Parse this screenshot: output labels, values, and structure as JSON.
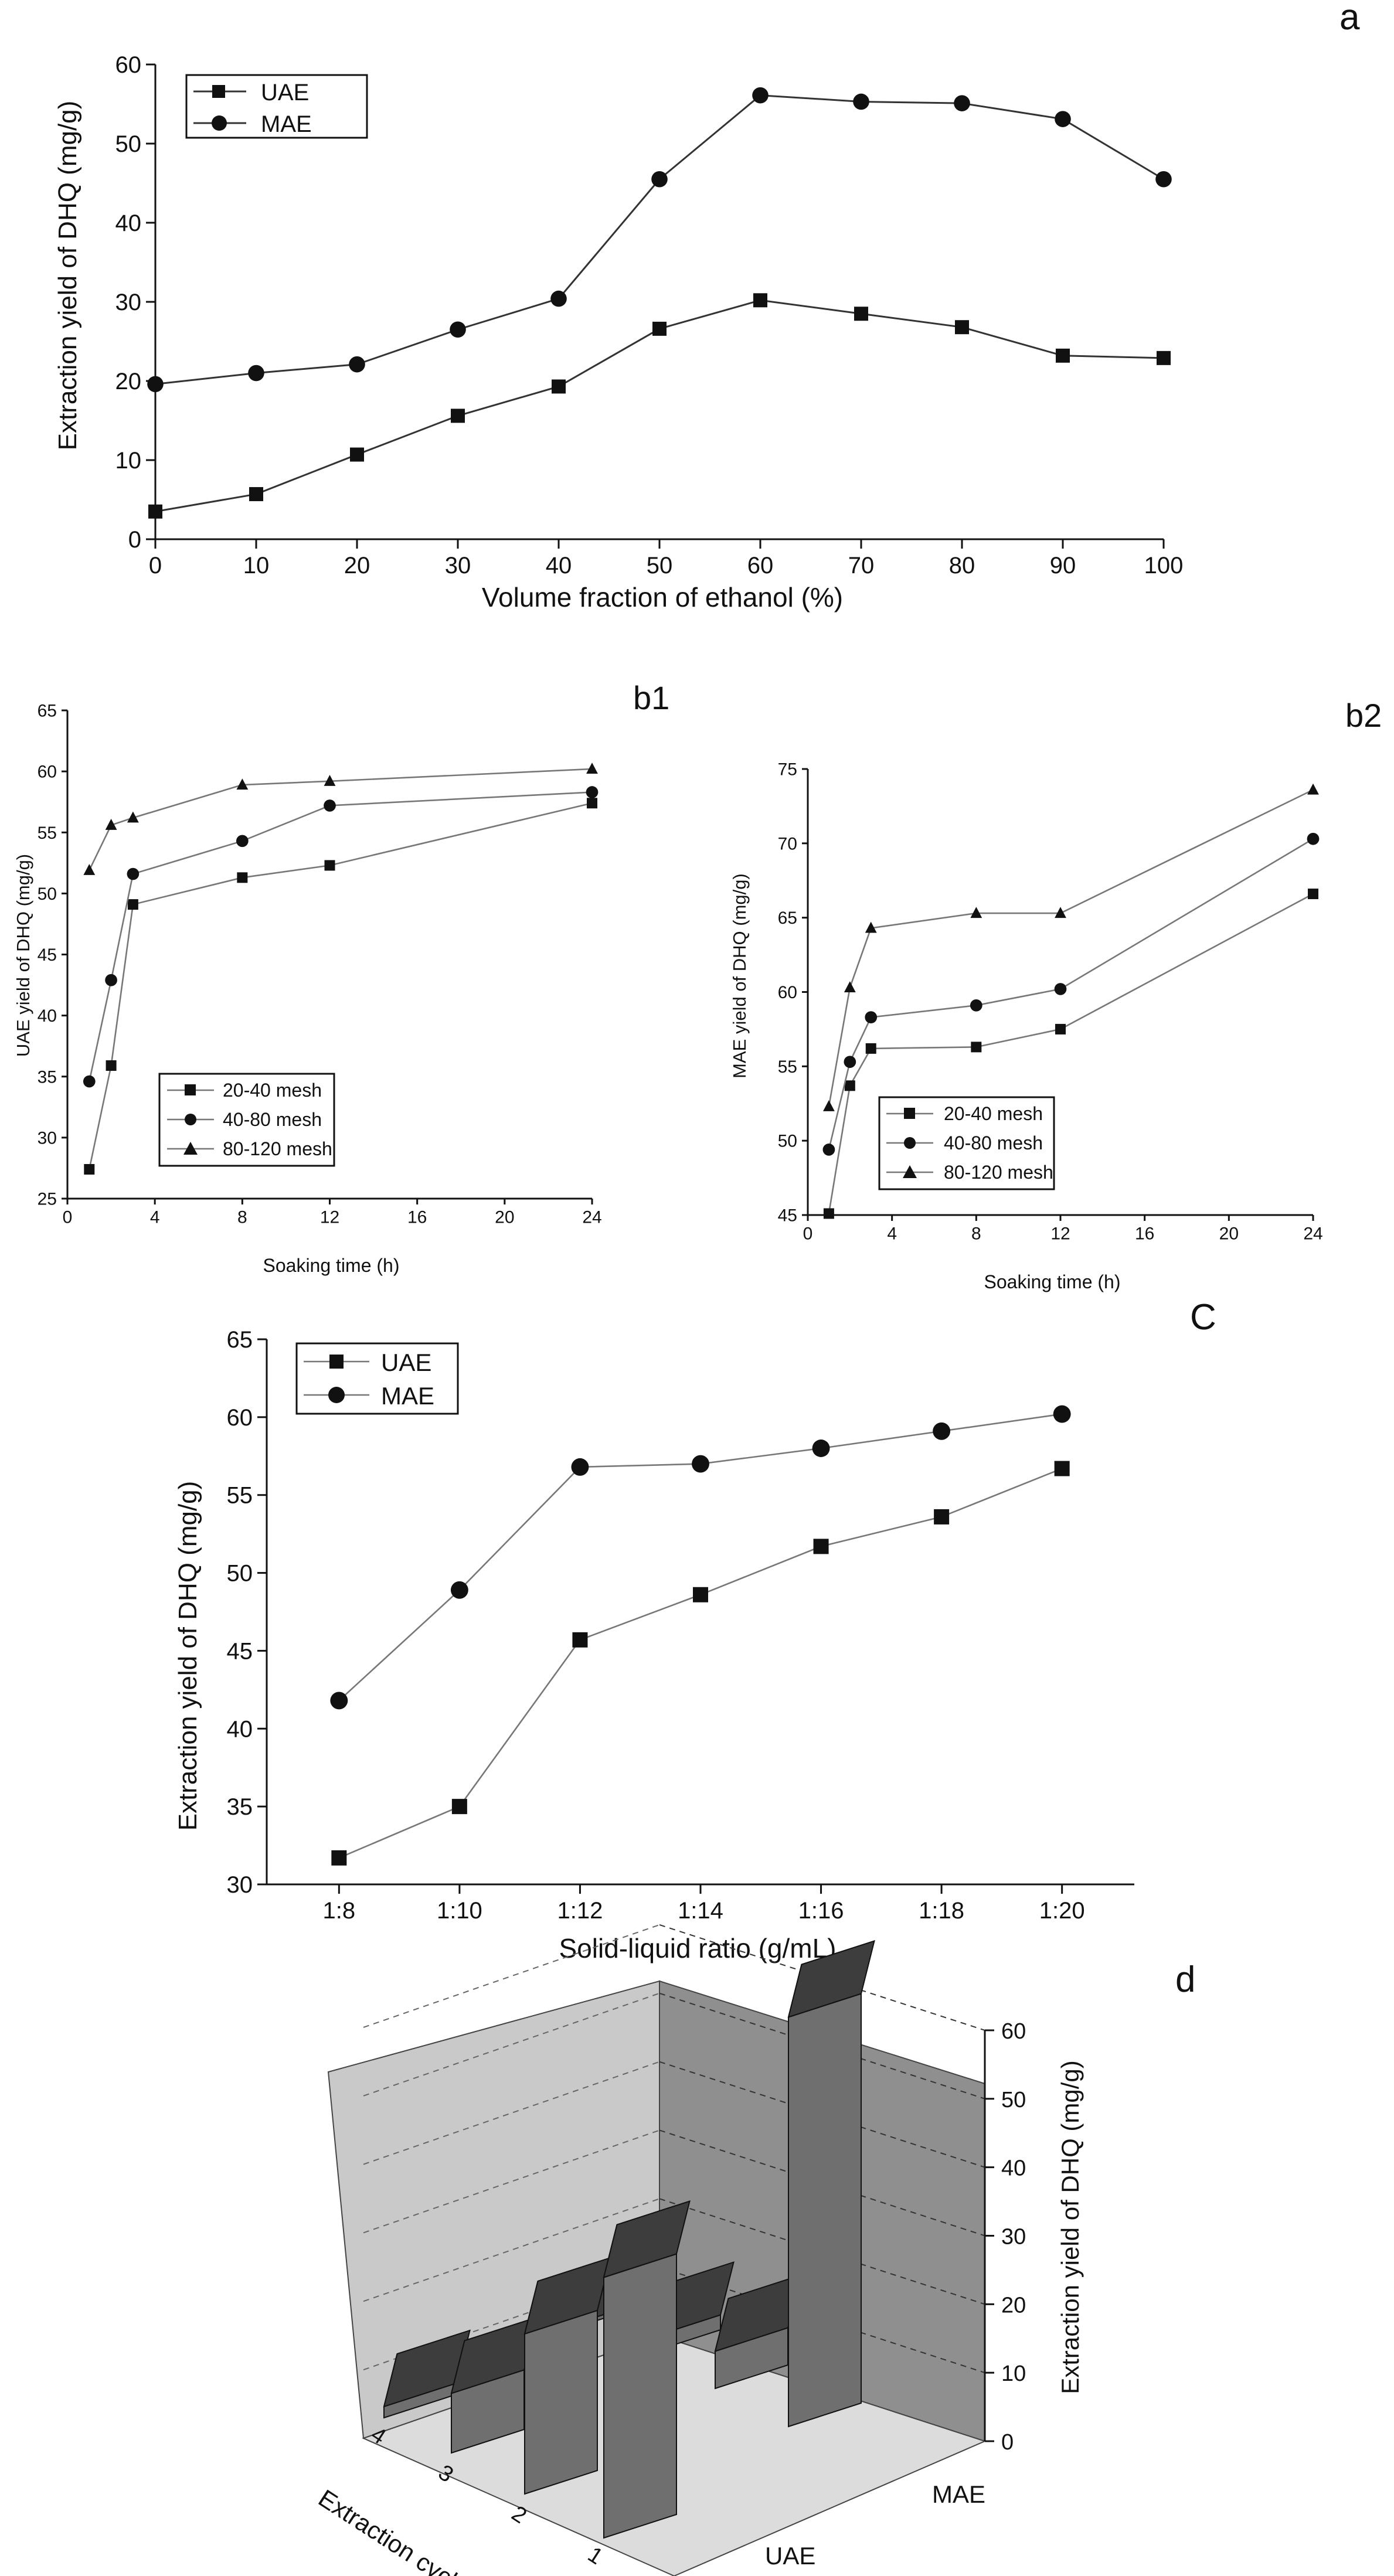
{
  "chart_data": [
    {
      "panel": "a",
      "type": "line",
      "title": "",
      "xlabel": "Volume fraction of ethanol (%)",
      "ylabel": "Extraction yield of DHQ (mg/g)",
      "xlim": [
        0,
        100
      ],
      "ylim": [
        0,
        60
      ],
      "xticks": [
        "0",
        "10",
        "20",
        "30",
        "40",
        "50",
        "60",
        "70",
        "80",
        "90",
        "100"
      ],
      "yticks": [
        "0",
        "10",
        "20",
        "30",
        "40",
        "50",
        "60"
      ],
      "x": [
        0,
        10,
        20,
        30,
        40,
        50,
        60,
        70,
        80,
        90,
        100
      ],
      "series": [
        {
          "name": "UAE",
          "marker": "square",
          "values": [
            3.5,
            5.7,
            10.7,
            15.6,
            19.3,
            26.6,
            30.2,
            28.5,
            26.8,
            23.2,
            22.9
          ]
        },
        {
          "name": "MAE",
          "marker": "circle",
          "values": [
            19.6,
            21.0,
            22.1,
            26.5,
            30.4,
            45.5,
            56.1,
            55.3,
            55.1,
            53.1,
            45.5
          ]
        }
      ]
    },
    {
      "panel": "b1",
      "type": "line",
      "xlabel": "Soaking time (h)",
      "ylabel": "UAE yield of DHQ (mg/g)",
      "xlim": [
        0,
        24
      ],
      "ylim": [
        25,
        65
      ],
      "xticks": [
        "0",
        "4",
        "8",
        "12",
        "16",
        "20",
        "24"
      ],
      "yticks": [
        "25",
        "30",
        "35",
        "40",
        "45",
        "50",
        "55",
        "60",
        "65"
      ],
      "x": [
        1,
        2,
        3,
        8,
        12,
        24
      ],
      "series": [
        {
          "name": "20-40 mesh",
          "marker": "square",
          "values": [
            27.4,
            35.9,
            49.1,
            51.3,
            52.3,
            57.4
          ]
        },
        {
          "name": "40-80 mesh",
          "marker": "circle",
          "values": [
            34.6,
            42.9,
            51.6,
            54.3,
            57.2,
            58.3
          ]
        },
        {
          "name": "80-120 mesh",
          "marker": "triangle",
          "values": [
            51.9,
            55.6,
            56.2,
            58.9,
            59.2,
            60.2
          ]
        }
      ]
    },
    {
      "panel": "b2",
      "type": "line",
      "xlabel": "Soaking time (h)",
      "ylabel": "MAE yield of DHQ (mg/g)",
      "xlim": [
        0,
        24
      ],
      "ylim": [
        45,
        75
      ],
      "xticks": [
        "0",
        "4",
        "8",
        "12",
        "16",
        "20",
        "24"
      ],
      "yticks": [
        "45",
        "50",
        "55",
        "60",
        "65",
        "70",
        "75"
      ],
      "x": [
        1,
        2,
        3,
        8,
        12,
        24
      ],
      "series": [
        {
          "name": "20-40 mesh",
          "marker": "square",
          "values": [
            45.1,
            53.7,
            56.2,
            56.3,
            57.5,
            66.6
          ]
        },
        {
          "name": "40-80 mesh",
          "marker": "circle",
          "values": [
            49.4,
            55.3,
            58.3,
            59.1,
            60.2,
            70.3
          ]
        },
        {
          "name": "80-120 mesh",
          "marker": "triangle",
          "values": [
            52.3,
            60.3,
            64.3,
            65.3,
            65.3,
            73.6
          ]
        }
      ]
    },
    {
      "panel": "C",
      "type": "line",
      "xlabel": "Solid-liquid ratio (g/mL)",
      "ylabel": "Extraction yield of DHQ (mg/g)",
      "ylim": [
        30,
        65
      ],
      "categories": [
        "1:8",
        "1:10",
        "1:12",
        "1:14",
        "1:16",
        "1:18",
        "1:20"
      ],
      "yticks": [
        "30",
        "35",
        "40",
        "45",
        "50",
        "55",
        "60",
        "65"
      ],
      "series": [
        {
          "name": "UAE",
          "marker": "square",
          "values": [
            31.7,
            35.0,
            45.7,
            48.6,
            51.7,
            53.6,
            56.7
          ]
        },
        {
          "name": "MAE",
          "marker": "circle",
          "values": [
            41.8,
            48.9,
            56.8,
            57.0,
            58.0,
            59.1,
            60.2
          ]
        }
      ]
    },
    {
      "panel": "d",
      "type": "bar3d",
      "xlabel": "Extraction cycles",
      "zlabel": "Extraction yield of DHQ (mg/g)",
      "zlim": [
        0,
        60
      ],
      "zticks": [
        "0",
        "10",
        "20",
        "30",
        "40",
        "50",
        "60"
      ],
      "cycle_labels": [
        "1",
        "2",
        "3",
        "4"
      ],
      "method_labels": [
        "UAE",
        "MAE"
      ],
      "series": [
        {
          "name": "UAE",
          "values": [
            35.0,
            21.5,
            8.0,
            1.5
          ]
        },
        {
          "name": "MAE",
          "values": [
            55.0,
            5.0,
            2.0,
            0.5
          ]
        }
      ]
    }
  ]
}
